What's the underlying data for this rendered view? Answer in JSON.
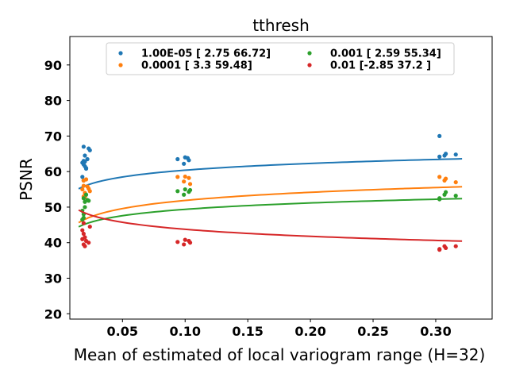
{
  "chart_data": {
    "type": "scatter",
    "title": "tthresh",
    "xlabel": "Mean of estimated of local variogram range (H=32)",
    "ylabel": "PSNR",
    "xlim": [
      0.008,
      0.345
    ],
    "ylim": [
      18.5,
      98
    ],
    "xticks": [
      0.05,
      0.1,
      0.15,
      0.2,
      0.25,
      0.3
    ],
    "xtick_labels": [
      "0.05",
      "0.10",
      "0.15",
      "0.20",
      "0.25",
      "0.30"
    ],
    "yticks": [
      20,
      30,
      40,
      50,
      60,
      70,
      80,
      90
    ],
    "ytick_labels": [
      "20",
      "30",
      "40",
      "50",
      "60",
      "70",
      "80",
      "90"
    ],
    "grid": false,
    "legend_position": "top-center",
    "series": [
      {
        "name": "1.00E-05 [ 2.75 66.72]",
        "color": "#1f77b4",
        "fit": [
          2.75,
          66.72
        ],
        "points": [
          [
            0.018,
            62.5
          ],
          [
            0.019,
            67.0
          ],
          [
            0.02,
            64.5
          ],
          [
            0.019,
            63.0
          ],
          [
            0.02,
            61.5
          ],
          [
            0.021,
            60.8
          ],
          [
            0.019,
            62.0
          ],
          [
            0.018,
            58.5
          ],
          [
            0.02,
            62.8
          ],
          [
            0.023,
            66.5
          ],
          [
            0.024,
            66.0
          ],
          [
            0.021,
            61.0
          ],
          [
            0.019,
            57.5
          ],
          [
            0.022,
            63.5
          ],
          [
            0.094,
            63.5
          ],
          [
            0.099,
            62.2
          ],
          [
            0.1,
            64.0
          ],
          [
            0.102,
            63.8
          ],
          [
            0.103,
            63.2
          ],
          [
            0.303,
            70.0
          ],
          [
            0.303,
            64.2
          ],
          [
            0.307,
            64.5
          ],
          [
            0.308,
            65.0
          ],
          [
            0.316,
            64.8
          ]
        ]
      },
      {
        "name": "0.0001 [ 3.3  59.48]",
        "color": "#ff7f0e",
        "fit": [
          3.3,
          59.48
        ],
        "points": [
          [
            0.018,
            55.0
          ],
          [
            0.019,
            57.5
          ],
          [
            0.02,
            54.0
          ],
          [
            0.019,
            53.0
          ],
          [
            0.021,
            57.8
          ],
          [
            0.022,
            55.8
          ],
          [
            0.023,
            55.2
          ],
          [
            0.024,
            54.5
          ],
          [
            0.019,
            56.0
          ],
          [
            0.02,
            52.8
          ],
          [
            0.094,
            58.5
          ],
          [
            0.099,
            57.2
          ],
          [
            0.1,
            58.6
          ],
          [
            0.103,
            58.2
          ],
          [
            0.104,
            56.5
          ],
          [
            0.303,
            58.5
          ],
          [
            0.307,
            57.5
          ],
          [
            0.308,
            58.0
          ],
          [
            0.316,
            57.0
          ]
        ]
      },
      {
        "name": "0.001 [ 2.59 55.34]",
        "color": "#2ca02c",
        "fit": [
          2.59,
          55.34
        ],
        "points": [
          [
            0.018,
            49.0
          ],
          [
            0.019,
            48.0
          ],
          [
            0.019,
            47.0
          ],
          [
            0.02,
            51.5
          ],
          [
            0.021,
            53.5
          ],
          [
            0.022,
            52.0
          ],
          [
            0.023,
            51.8
          ],
          [
            0.018,
            46.5
          ],
          [
            0.02,
            50.0
          ],
          [
            0.019,
            52.5
          ],
          [
            0.094,
            54.5
          ],
          [
            0.099,
            53.5
          ],
          [
            0.1,
            55.0
          ],
          [
            0.103,
            54.3
          ],
          [
            0.104,
            54.8
          ],
          [
            0.303,
            52.5
          ],
          [
            0.303,
            52.2
          ],
          [
            0.307,
            53.5
          ],
          [
            0.308,
            54.2
          ],
          [
            0.316,
            53.2
          ]
        ]
      },
      {
        "name": "0.01 [-2.85 37.2 ]",
        "color": "#d62728",
        "fit": [
          -2.85,
          37.2
        ],
        "points": [
          [
            0.018,
            43.5
          ],
          [
            0.019,
            42.5
          ],
          [
            0.018,
            41.0
          ],
          [
            0.019,
            39.5
          ],
          [
            0.02,
            39.0
          ],
          [
            0.021,
            40.5
          ],
          [
            0.023,
            40.0
          ],
          [
            0.024,
            44.5
          ],
          [
            0.019,
            45.5
          ],
          [
            0.02,
            41.5
          ],
          [
            0.094,
            40.2
          ],
          [
            0.099,
            39.5
          ],
          [
            0.1,
            40.8
          ],
          [
            0.103,
            40.5
          ],
          [
            0.104,
            40.0
          ],
          [
            0.303,
            38.2
          ],
          [
            0.303,
            38.0
          ],
          [
            0.307,
            39.0
          ],
          [
            0.308,
            38.5
          ],
          [
            0.316,
            39.0
          ]
        ]
      }
    ]
  }
}
